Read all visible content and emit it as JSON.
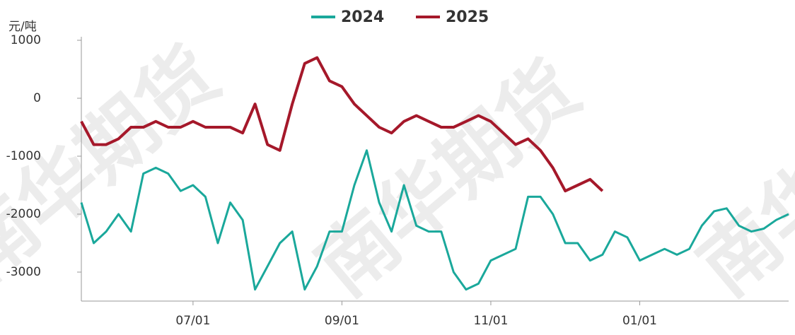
{
  "chart_data": {
    "type": "line",
    "y_label": "元/吨",
    "watermark": "南华期货",
    "categories": [
      null,
      null,
      null,
      null,
      null,
      null,
      null,
      null,
      null,
      "07/01",
      null,
      null,
      null,
      null,
      null,
      null,
      null,
      null,
      null,
      null,
      null,
      "09/01",
      null,
      null,
      null,
      null,
      null,
      null,
      null,
      null,
      null,
      null,
      null,
      "11/01",
      null,
      null,
      null,
      null,
      null,
      null,
      null,
      null,
      null,
      null,
      null,
      "01/01",
      null,
      null,
      null,
      null,
      null,
      null,
      null,
      null,
      null,
      null,
      null,
      null
    ],
    "series": [
      {
        "name": "2024",
        "color": "#1aa89b",
        "values": [
          -1800,
          -2500,
          -2300,
          -2000,
          -2300,
          -1300,
          -1200,
          -1300,
          -1600,
          -1500,
          -1700,
          -2500,
          -1800,
          -2100,
          -3300,
          -2900,
          -2500,
          -2300,
          -3300,
          -2900,
          -2300,
          -2300,
          -1500,
          -900,
          -1800,
          -2300,
          -1500,
          -2200,
          -2300,
          -2300,
          -3000,
          -3300,
          -3200,
          -2800,
          -2700,
          -2600,
          -1700,
          -1700,
          -2000,
          -2500,
          -2500,
          -2800,
          -2700,
          -2300,
          -2400,
          -2800,
          -2700,
          -2600,
          -2700,
          -2600,
          -2200,
          -1950,
          -1900,
          -2200,
          -2300,
          -2250,
          -2100,
          -2000
        ]
      },
      {
        "name": "2025",
        "color": "#a5182a",
        "values": [
          -400,
          -800,
          -800,
          -700,
          -500,
          -500,
          -400,
          -500,
          -500,
          -400,
          -500,
          -500,
          -500,
          -600,
          -100,
          -800,
          -900,
          -100,
          600,
          700,
          300,
          200,
          -100,
          -300,
          -500,
          -600,
          -400,
          -300,
          -400,
          -500,
          -500,
          -400,
          -300,
          -400,
          -600,
          -800,
          -700,
          -900,
          -1200,
          -1600,
          -1500,
          -1400,
          -1600,
          null,
          null,
          null,
          null,
          null,
          null,
          null,
          null,
          null,
          null,
          null,
          null,
          null,
          null,
          null
        ]
      }
    ],
    "ylim": [
      -3500,
      1000
    ],
    "yticks": [
      1000,
      0,
      -1000,
      -2000,
      -3000
    ],
    "grid": false,
    "legend": "top"
  }
}
